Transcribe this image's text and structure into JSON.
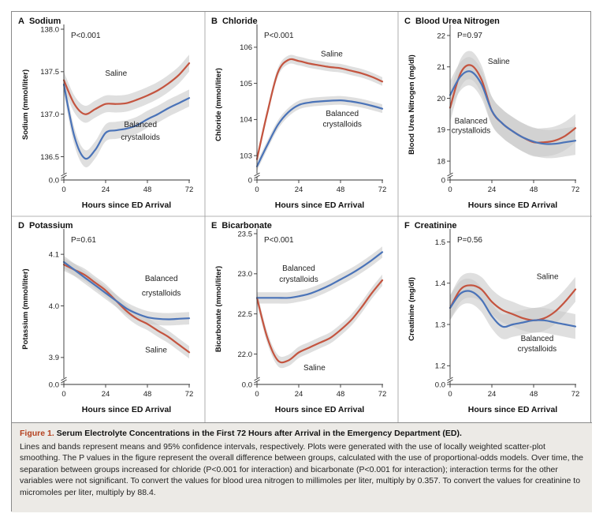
{
  "caption": {
    "number": "Figure 1.",
    "title": "Serum Electrolyte Concentrations in the First 72 Hours after Arrival in the Emergency Department (ED).",
    "body": "Lines and bands represent means and 95% confidence intervals, respectively. Plots were generated with the use of locally weighted scatter-plot smoothing. The P values in the figure represent the overall difference between groups, calculated with the use of proportional-odds models. Over time, the separation between groups increased for chloride (P<0.001 for interaction) and bicarbonate (P<0.001 for interaction); interaction terms for the other variables were not significant. To convert the values for blood urea nitrogen to millimoles per liter, multiply by 0.357. To convert the values for creatinine to micromoles per liter, multiply by 88.4."
  },
  "colors": {
    "saline": "#c4543f",
    "balanced": "#4a73b8",
    "band": "#c9c9c9",
    "axis": "#333333"
  },
  "chart_data": [
    {
      "type": "line",
      "letter": "A",
      "title": "Sodium",
      "pvalue": "P<0.001",
      "ylabel": "Sodium (mmol/liter)",
      "xlabel": "Hours since ED Arrival",
      "xlim": [
        0,
        72
      ],
      "xticks": [
        "0",
        "24",
        "48",
        "72"
      ],
      "ylim": [
        136.3,
        138.0
      ],
      "yticks": [
        136.5,
        137.0,
        137.5,
        138.0
      ],
      "yticklabels": [
        "136.5",
        "137.0",
        "137.5",
        "138.0"
      ],
      "zero_label": "0.0",
      "axis_break": true,
      "x": [
        0,
        6,
        12,
        18,
        24,
        30,
        36,
        42,
        48,
        54,
        60,
        66,
        72
      ],
      "series": [
        {
          "name": "Saline",
          "values": [
            137.4,
            137.12,
            137.0,
            137.06,
            137.12,
            137.12,
            137.13,
            137.17,
            137.22,
            137.28,
            137.36,
            137.46,
            137.6
          ],
          "band": 0.1
        },
        {
          "name": "Balanced crystalloids",
          "values": [
            137.35,
            136.74,
            136.48,
            136.58,
            136.78,
            136.81,
            136.83,
            136.87,
            136.94,
            137.0,
            137.07,
            137.13,
            137.19
          ],
          "band": 0.1
        }
      ],
      "labels": [
        {
          "text": "Saline",
          "x": 30,
          "y": 137.45
        },
        {
          "text": "Balanced",
          "x": 44,
          "y": 136.85
        },
        {
          "text": "crystalloids",
          "x": 44,
          "y": 136.7
        }
      ]
    },
    {
      "type": "line",
      "letter": "B",
      "title": "Chloride",
      "pvalue": "P<0.001",
      "ylabel": "Chloride (mmol/liter)",
      "xlabel": "Hours since ED Arrival",
      "xlim": [
        0,
        72
      ],
      "xticks": [
        "0",
        "24",
        "48",
        "72"
      ],
      "ylim": [
        102.5,
        106.5
      ],
      "yticks": [
        103,
        104,
        105,
        106
      ],
      "yticklabels": [
        "103",
        "104",
        "105",
        "106"
      ],
      "zero_label": "0",
      "axis_break": true,
      "x": [
        0,
        6,
        12,
        18,
        24,
        30,
        36,
        42,
        48,
        54,
        60,
        66,
        72
      ],
      "series": [
        {
          "name": "Saline",
          "values": [
            102.9,
            104.2,
            105.3,
            105.65,
            105.62,
            105.55,
            105.5,
            105.45,
            105.42,
            105.35,
            105.28,
            105.18,
            105.05
          ],
          "band": 0.12
        },
        {
          "name": "Balanced crystalloids",
          "values": [
            102.7,
            103.3,
            103.85,
            104.2,
            104.4,
            104.47,
            104.5,
            104.52,
            104.53,
            104.5,
            104.45,
            104.38,
            104.3
          ],
          "band": 0.12
        }
      ],
      "labels": [
        {
          "text": "Saline",
          "x": 43,
          "y": 105.75
        },
        {
          "text": "Balanced",
          "x": 49,
          "y": 104.1
        },
        {
          "text": "crystalloids",
          "x": 49,
          "y": 103.8
        }
      ]
    },
    {
      "type": "line",
      "letter": "C",
      "title": "Blood Urea Nitrogen",
      "pvalue": "P=0.97",
      "ylabel": "Blood Urea Nitrogen (mg/dl)",
      "xlabel": "Hours since ED Arrival",
      "xlim": [
        0,
        72
      ],
      "xticks": [
        "0",
        "24",
        "48",
        "72"
      ],
      "ylim": [
        17.6,
        22.2
      ],
      "yticks": [
        18,
        19,
        20,
        21,
        22
      ],
      "yticklabels": [
        "18",
        "19",
        "20",
        "21",
        "22"
      ],
      "zero_label": "0",
      "axis_break": true,
      "x": [
        0,
        6,
        12,
        18,
        24,
        30,
        36,
        42,
        48,
        54,
        60,
        66,
        72
      ],
      "series": [
        {
          "name": "Saline",
          "values": [
            19.7,
            20.8,
            21.05,
            20.6,
            19.6,
            19.2,
            18.95,
            18.75,
            18.6,
            18.6,
            18.65,
            18.8,
            19.05
          ],
          "band": 0.45
        },
        {
          "name": "Balanced crystalloids",
          "values": [
            20.1,
            20.7,
            20.85,
            20.45,
            19.6,
            19.2,
            18.95,
            18.75,
            18.62,
            18.55,
            18.55,
            18.6,
            18.65
          ],
          "band": 0.45
        }
      ],
      "labels": [
        {
          "text": "Saline",
          "x": 28,
          "y": 21.1
        },
        {
          "text": "Balanced",
          "x": 12,
          "y": 19.2
        },
        {
          "text": "crystalloids",
          "x": 12,
          "y": 18.9
        }
      ]
    },
    {
      "type": "line",
      "letter": "D",
      "title": "Potassium",
      "pvalue": "P=0.61",
      "ylabel": "Potassium (mmol/liter)",
      "xlabel": "Hours since ED Arrival",
      "xlim": [
        0,
        72
      ],
      "xticks": [
        "0",
        "24",
        "48",
        "72"
      ],
      "ylim": [
        3.86,
        4.14
      ],
      "yticks": [
        3.9,
        4.0,
        4.1
      ],
      "yticklabels": [
        "3.9",
        "4.0",
        "4.1"
      ],
      "zero_label": "0.0",
      "axis_break": true,
      "x": [
        0,
        6,
        12,
        18,
        24,
        30,
        36,
        42,
        48,
        54,
        60,
        66,
        72
      ],
      "series": [
        {
          "name": "Saline",
          "values": [
            4.08,
            4.07,
            4.06,
            4.045,
            4.03,
            4.01,
            3.99,
            3.975,
            3.965,
            3.952,
            3.94,
            3.925,
            3.91
          ],
          "band": 0.012
        },
        {
          "name": "Balanced crystalloids",
          "values": [
            4.085,
            4.07,
            4.055,
            4.04,
            4.025,
            4.01,
            3.995,
            3.985,
            3.978,
            3.975,
            3.974,
            3.975,
            3.976
          ],
          "band": 0.012
        }
      ],
      "labels": [
        {
          "text": "Balanced",
          "x": 56,
          "y": 4.048
        },
        {
          "text": "crystalloids",
          "x": 56,
          "y": 4.02
        },
        {
          "text": "Saline",
          "x": 53,
          "y": 3.91
        }
      ]
    },
    {
      "type": "line",
      "letter": "E",
      "title": "Bicarbonate",
      "pvalue": "P<0.001",
      "ylabel": "Bicarbonate (mmol/liter)",
      "xlabel": "Hours since ED Arrival",
      "xlim": [
        0,
        72
      ],
      "xticks": [
        "0",
        "24",
        "48",
        "72"
      ],
      "ylim": [
        21.7,
        23.5
      ],
      "yticks": [
        22.0,
        22.5,
        23.0,
        23.5
      ],
      "yticklabels": [
        "22.0",
        "22.5",
        "23.0",
        "23.5"
      ],
      "zero_label": "0.0",
      "axis_break": true,
      "x": [
        0,
        6,
        12,
        18,
        24,
        30,
        36,
        42,
        48,
        54,
        60,
        66,
        72
      ],
      "series": [
        {
          "name": "Saline",
          "values": [
            22.7,
            22.2,
            21.92,
            21.92,
            22.02,
            22.08,
            22.14,
            22.2,
            22.3,
            22.42,
            22.58,
            22.76,
            22.92
          ],
          "band": 0.07
        },
        {
          "name": "Balanced crystalloids",
          "values": [
            22.7,
            22.7,
            22.7,
            22.7,
            22.72,
            22.75,
            22.8,
            22.86,
            22.93,
            23.0,
            23.08,
            23.17,
            23.27
          ],
          "band": 0.07
        }
      ],
      "labels": [
        {
          "text": "Balanced",
          "x": 24,
          "y": 23.04
        },
        {
          "text": "crystalloids",
          "x": 24,
          "y": 22.9
        },
        {
          "text": "Saline",
          "x": 33,
          "y": 21.8
        }
      ]
    },
    {
      "type": "line",
      "letter": "F",
      "title": "Creatinine",
      "pvalue": "P=0.56",
      "ylabel": "Creatinine (mg/dl)",
      "xlabel": "Hours since ED Arrival",
      "xlim": [
        0,
        72
      ],
      "xticks": [
        "0",
        "24",
        "48",
        "72"
      ],
      "ylim": [
        1.17,
        1.52
      ],
      "yticks": [
        1.2,
        1.3,
        1.4,
        1.5
      ],
      "yticklabels": [
        "1.2",
        "1.3",
        "1.4",
        "1.5"
      ],
      "zero_label": "0.0",
      "axis_break": true,
      "x": [
        0,
        6,
        12,
        18,
        24,
        30,
        36,
        42,
        48,
        54,
        60,
        66,
        72
      ],
      "series": [
        {
          "name": "Saline",
          "values": [
            1.34,
            1.385,
            1.395,
            1.385,
            1.355,
            1.335,
            1.325,
            1.315,
            1.31,
            1.315,
            1.33,
            1.355,
            1.385
          ],
          "band": 0.03
        },
        {
          "name": "Balanced crystalloids",
          "values": [
            1.34,
            1.375,
            1.38,
            1.36,
            1.32,
            1.295,
            1.3,
            1.305,
            1.31,
            1.31,
            1.305,
            1.3,
            1.295
          ],
          "band": 0.03
        }
      ],
      "labels": [
        {
          "text": "Saline",
          "x": 56,
          "y": 1.41
        },
        {
          "text": "Balanced",
          "x": 50,
          "y": 1.26
        },
        {
          "text": "crystalloids",
          "x": 50,
          "y": 1.235
        }
      ]
    }
  ]
}
